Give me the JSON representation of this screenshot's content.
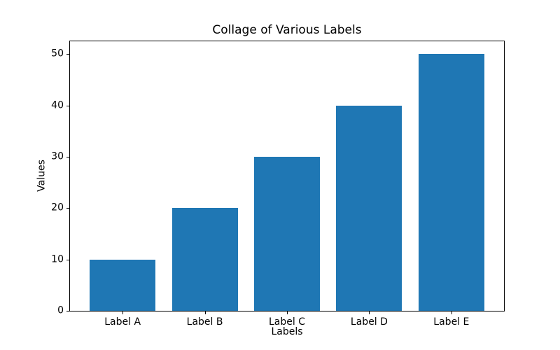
{
  "chart_data": {
    "type": "bar",
    "title": "Collage of Various Labels",
    "xlabel": "Labels",
    "ylabel": "Values",
    "categories": [
      "Label A",
      "Label B",
      "Label C",
      "Label D",
      "Label E"
    ],
    "values": [
      10,
      20,
      30,
      40,
      50
    ],
    "yticks": [
      0,
      10,
      20,
      30,
      40,
      50
    ],
    "ylim": [
      0,
      52.5
    ],
    "bar_color": "#1f77b4",
    "bar_width_fraction": 0.8,
    "grid": false,
    "legend_position": "none",
    "background_color": "#ffffff",
    "spine_color": "#000000"
  }
}
